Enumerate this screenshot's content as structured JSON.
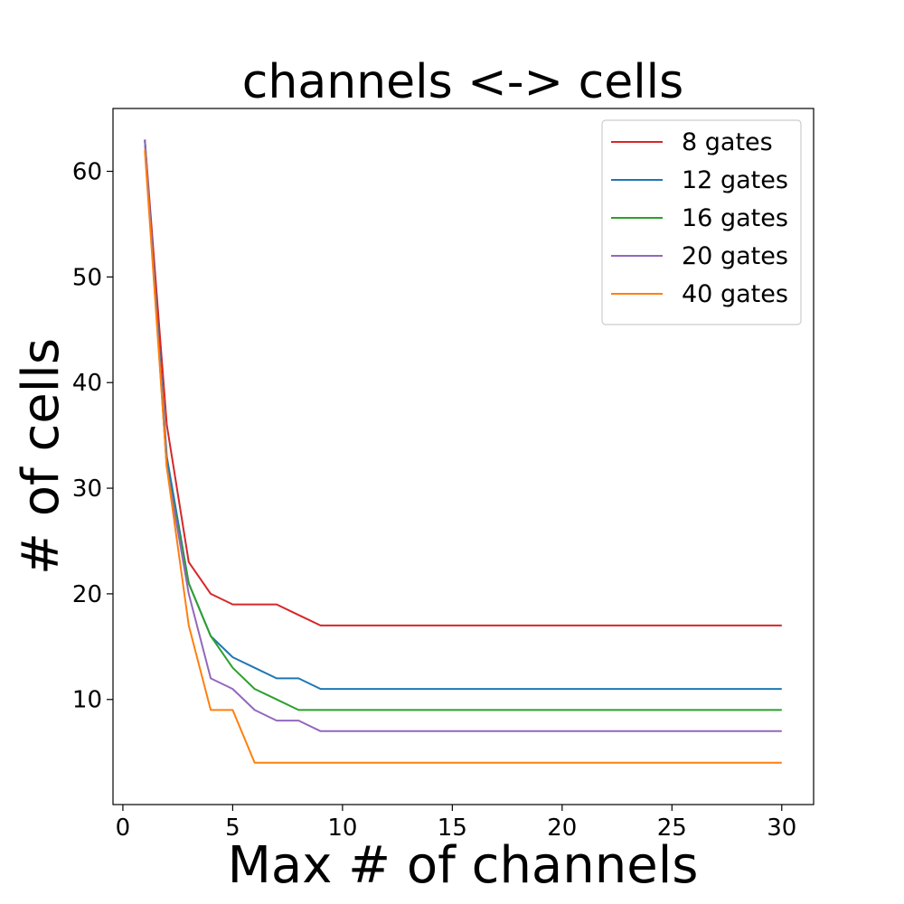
{
  "chart_data": {
    "type": "line",
    "title": "channels <-> cells",
    "xlabel": "Max # of channels",
    "ylabel": "# of cells",
    "xlim": [
      -0.45,
      31.45
    ],
    "ylim": [
      0.05,
      65.95
    ],
    "xticks": [
      0,
      5,
      10,
      15,
      20,
      25,
      30
    ],
    "yticks": [
      10,
      20,
      30,
      40,
      50,
      60
    ],
    "grid": false,
    "legend_position": "top-right",
    "x": [
      1,
      2,
      3,
      4,
      5,
      6,
      7,
      8,
      9,
      10,
      11,
      12,
      13,
      14,
      15,
      16,
      17,
      18,
      19,
      20,
      21,
      22,
      23,
      24,
      25,
      26,
      27,
      28,
      29,
      30
    ],
    "series": [
      {
        "name": "8 gates",
        "color": "#d62728",
        "values": [
          63,
          36,
          23,
          20,
          19,
          19,
          19,
          18,
          17,
          17,
          17,
          17,
          17,
          17,
          17,
          17,
          17,
          17,
          17,
          17,
          17,
          17,
          17,
          17,
          17,
          17,
          17,
          17,
          17,
          17
        ]
      },
      {
        "name": "12 gates",
        "color": "#1f77b4",
        "values": [
          63,
          33,
          21,
          16,
          14,
          13,
          12,
          12,
          11,
          11,
          11,
          11,
          11,
          11,
          11,
          11,
          11,
          11,
          11,
          11,
          11,
          11,
          11,
          11,
          11,
          11,
          11,
          11,
          11,
          11
        ]
      },
      {
        "name": "16 gates",
        "color": "#2ca02c",
        "values": [
          63,
          32,
          21,
          16,
          13,
          11,
          10,
          9,
          9,
          9,
          9,
          9,
          9,
          9,
          9,
          9,
          9,
          9,
          9,
          9,
          9,
          9,
          9,
          9,
          9,
          9,
          9,
          9,
          9,
          9
        ]
      },
      {
        "name": "20 gates",
        "color": "#9467bd",
        "values": [
          63,
          32,
          20,
          12,
          11,
          9,
          8,
          8,
          7,
          7,
          7,
          7,
          7,
          7,
          7,
          7,
          7,
          7,
          7,
          7,
          7,
          7,
          7,
          7,
          7,
          7,
          7,
          7,
          7,
          7
        ]
      },
      {
        "name": "40 gates",
        "color": "#ff7f0e",
        "values": [
          62,
          32,
          17,
          9,
          9,
          4,
          4,
          4,
          4,
          4,
          4,
          4,
          4,
          4,
          4,
          4,
          4,
          4,
          4,
          4,
          4,
          4,
          4,
          4,
          4,
          4,
          4,
          4,
          4,
          4
        ]
      }
    ]
  }
}
